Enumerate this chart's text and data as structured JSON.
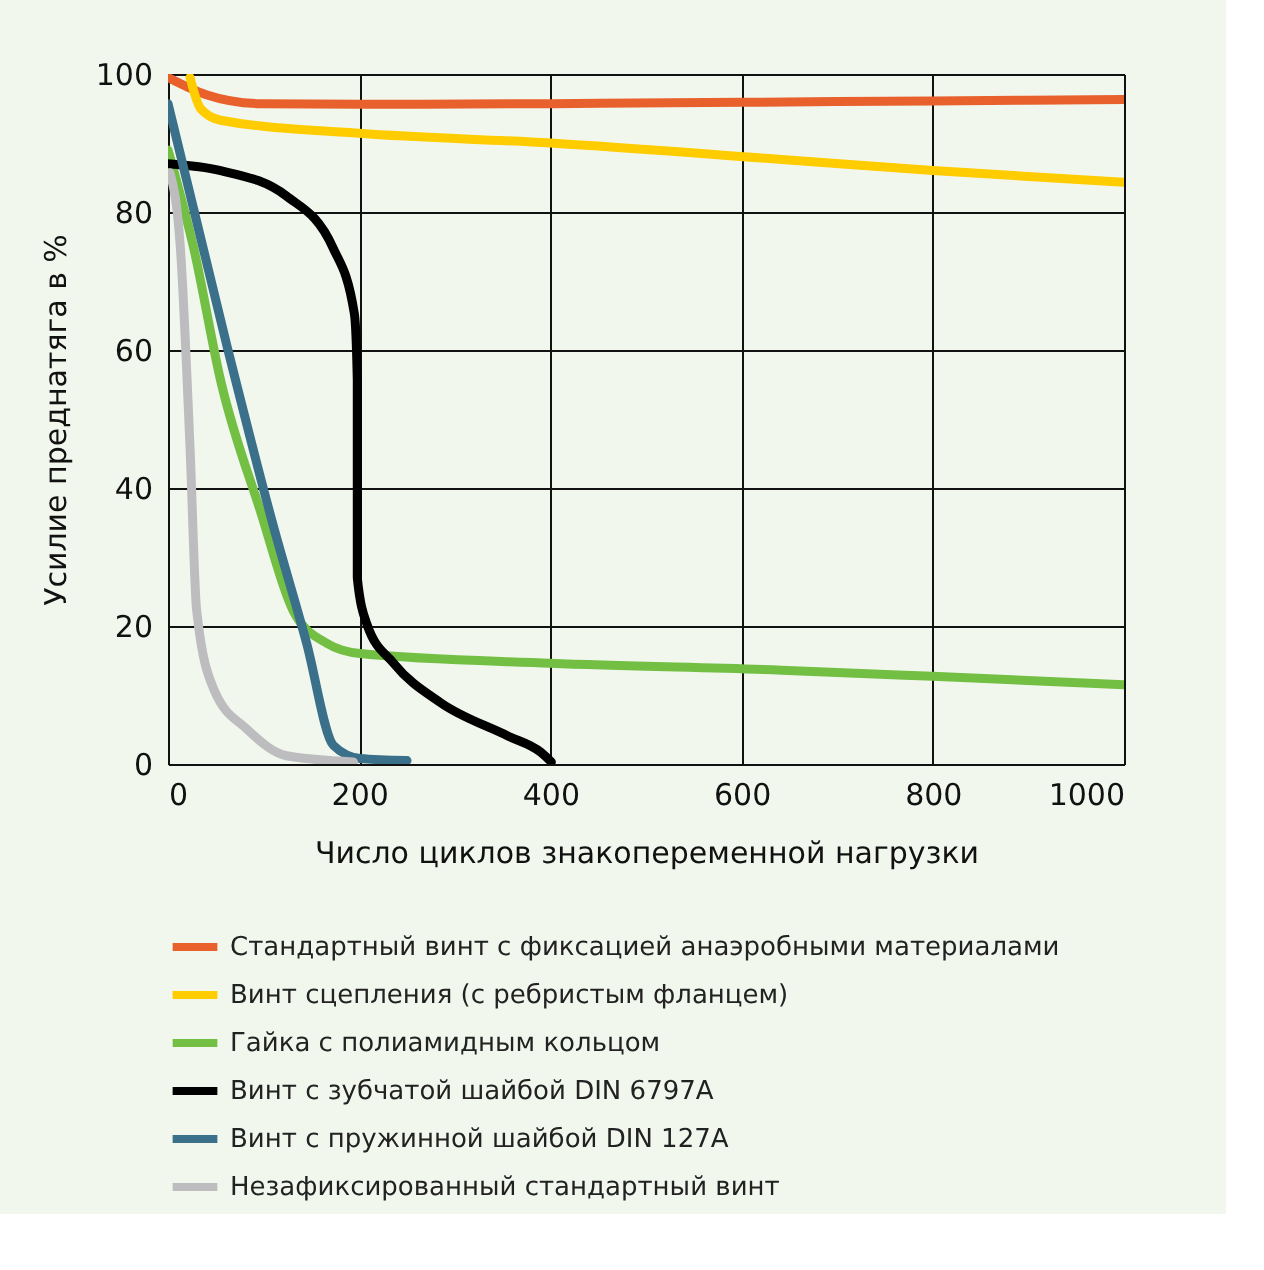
{
  "chart_data": {
    "type": "line",
    "xlabel": "Число циклов знакопеременной нагрузки",
    "ylabel": "Усилие преднатяга в %",
    "xlim": [
      0,
      1000
    ],
    "ylim": [
      0,
      100
    ],
    "xticks": [
      0,
      200,
      400,
      600,
      800,
      1000
    ],
    "yticks": [
      0,
      20,
      40,
      60,
      80,
      100
    ],
    "grid": true,
    "legend": "bottom",
    "series": [
      {
        "name": "Стандартный винт с фиксацией анаэробными материалами",
        "color": "#e8602c",
        "x": [
          0,
          40,
          97,
          200,
          400,
          600,
          800,
          1000
        ],
        "values": [
          99.5,
          97,
          95.7,
          95.6,
          95.7,
          95.9,
          96.1,
          96.3
        ]
      },
      {
        "name": "Винт сцепления (с ребристым фланцем)",
        "color": "#ffcc00",
        "x": [
          23,
          34,
          55,
          200,
          400,
          642,
          800,
          1000
        ],
        "values": [
          99.5,
          95,
          93.3,
          91.4,
          90,
          87.6,
          86,
          84.3
        ]
      },
      {
        "name": "Гайка с полиамидным кольцом",
        "color": "#72bf44",
        "x": [
          0,
          27,
          55,
          97,
          131,
          166,
          201,
          400,
          642,
          800,
          1000
        ],
        "values": [
          89,
          74.7,
          55.6,
          36.5,
          22.2,
          17.5,
          16,
          14.6,
          13.6,
          12.7,
          11.5
        ]
      },
      {
        "name": "Винт с зубчатой шайбой DIN 6797A",
        "color": "#000000",
        "x": [
          0,
          55,
          124,
          173,
          195,
          198,
          198,
          208,
          236,
          285,
          355,
          390,
          401
        ],
        "values": [
          87,
          86,
          82.3,
          74.7,
          65.2,
          55.6,
          27,
          20.3,
          14.6,
          8.9,
          4.1,
          1.7,
          0.3
        ]
      },
      {
        "name": "Винт с пружинной шайбой DIN 127A",
        "color": "#3a7089",
        "x": [
          0,
          62,
          110,
          145,
          173,
          201,
          250
        ],
        "values": [
          95.7,
          60.4,
          34.6,
          17.5,
          2.7,
          0.8,
          0.5
        ]
      },
      {
        "name": "Незафиксированный стандартный винт",
        "color": "#bdbdc0",
        "x": [
          2,
          13,
          23,
          30,
          48,
          83,
          124,
          194
        ],
        "values": [
          85.7,
          74.7,
          46,
          22.2,
          10.8,
          5,
          1.2,
          0.3
        ]
      }
    ]
  }
}
